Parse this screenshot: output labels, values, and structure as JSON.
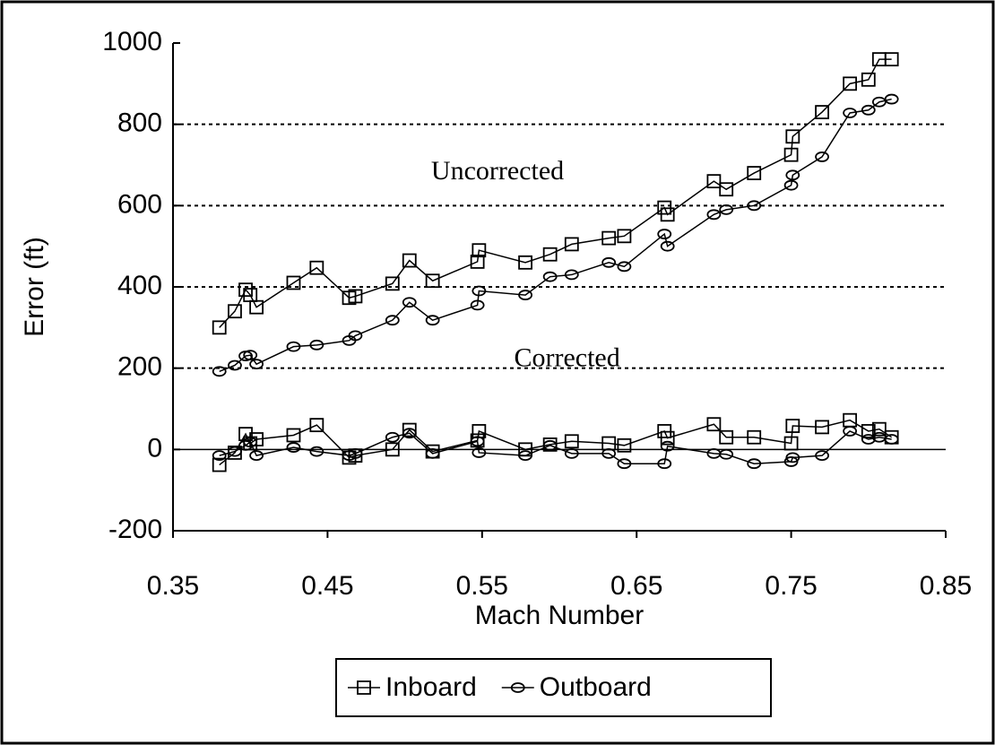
{
  "chart_data": {
    "type": "line",
    "ylabel": "Error (ft)",
    "xlabel": "Mach Number",
    "xlim": [
      0.35,
      0.85
    ],
    "xticks": [
      0.35,
      0.45,
      0.55,
      0.65,
      0.75,
      0.85
    ],
    "ylim": [
      -200,
      1000
    ],
    "yticks": [
      -200,
      0,
      200,
      400,
      600,
      800,
      1000
    ],
    "grid": true,
    "legend": "bottom",
    "annotations": [
      {
        "text": "Uncorrected",
        "x": 0.56,
        "y": 680
      },
      {
        "text": "Corrected",
        "x": 0.605,
        "y": 220
      }
    ],
    "series": [
      {
        "name": "Inboard",
        "marker": "square",
        "color": "#000000",
        "x": [
          0.38,
          0.39,
          0.397,
          0.4,
          0.404,
          0.428,
          0.443,
          0.464,
          0.468,
          0.492,
          0.503,
          0.518,
          0.547,
          0.548,
          0.578,
          0.594,
          0.608,
          0.632,
          0.642,
          0.668,
          0.67,
          0.7,
          0.708,
          0.726,
          0.75,
          0.751,
          0.77,
          0.788,
          0.8,
          0.807,
          0.815,
          null,
          0.38,
          0.39,
          0.397,
          0.4,
          0.404,
          0.428,
          0.443,
          0.464,
          0.468,
          0.492,
          0.503,
          0.518,
          0.547,
          0.548,
          0.578,
          0.594,
          0.608,
          0.632,
          0.642,
          0.668,
          0.67,
          0.7,
          0.708,
          0.726,
          0.75,
          0.751,
          0.77,
          0.788,
          0.8,
          0.807,
          0.815
        ],
        "values": [
          300,
          340,
          393,
          380,
          350,
          410,
          447,
          373,
          377,
          408,
          465,
          415,
          462,
          490,
          460,
          480,
          505,
          520,
          525,
          595,
          578,
          660,
          640,
          680,
          725,
          770,
          830,
          900,
          910,
          960,
          960,
          null,
          -38,
          -8,
          38,
          15,
          25,
          35,
          60,
          -20,
          -15,
          0,
          48,
          -5,
          22,
          45,
          0,
          12,
          20,
          15,
          10,
          45,
          28,
          62,
          30,
          30,
          15,
          58,
          55,
          72,
          45,
          50,
          30
        ]
      },
      {
        "name": "Outboard",
        "marker": "circle",
        "color": "#000000",
        "x": [
          0.38,
          0.39,
          0.397,
          0.4,
          0.404,
          0.428,
          0.443,
          0.464,
          0.468,
          0.492,
          0.503,
          0.518,
          0.547,
          0.548,
          0.578,
          0.594,
          0.608,
          0.632,
          0.642,
          0.668,
          0.67,
          0.7,
          0.708,
          0.726,
          0.75,
          0.751,
          0.77,
          0.788,
          0.8,
          0.807,
          0.815,
          null,
          0.38,
          0.39,
          0.397,
          0.4,
          0.404,
          0.428,
          0.443,
          0.464,
          0.468,
          0.492,
          0.503,
          0.518,
          0.547,
          0.548,
          0.578,
          0.594,
          0.608,
          0.632,
          0.642,
          0.668,
          0.67,
          0.7,
          0.708,
          0.726,
          0.75,
          0.751,
          0.77,
          0.788,
          0.8,
          0.807,
          0.815
        ],
        "values": [
          192,
          207,
          230,
          232,
          210,
          253,
          257,
          268,
          280,
          318,
          362,
          318,
          355,
          390,
          380,
          425,
          430,
          460,
          450,
          530,
          500,
          578,
          590,
          600,
          650,
          675,
          720,
          828,
          835,
          855,
          862,
          null,
          -15,
          -5,
          10,
          18,
          -15,
          5,
          -5,
          -15,
          -10,
          30,
          40,
          -10,
          20,
          -8,
          -15,
          10,
          -10,
          -10,
          -35,
          -35,
          8,
          -10,
          -12,
          -35,
          -30,
          -20,
          -15,
          45,
          25,
          30,
          25
        ]
      }
    ]
  }
}
